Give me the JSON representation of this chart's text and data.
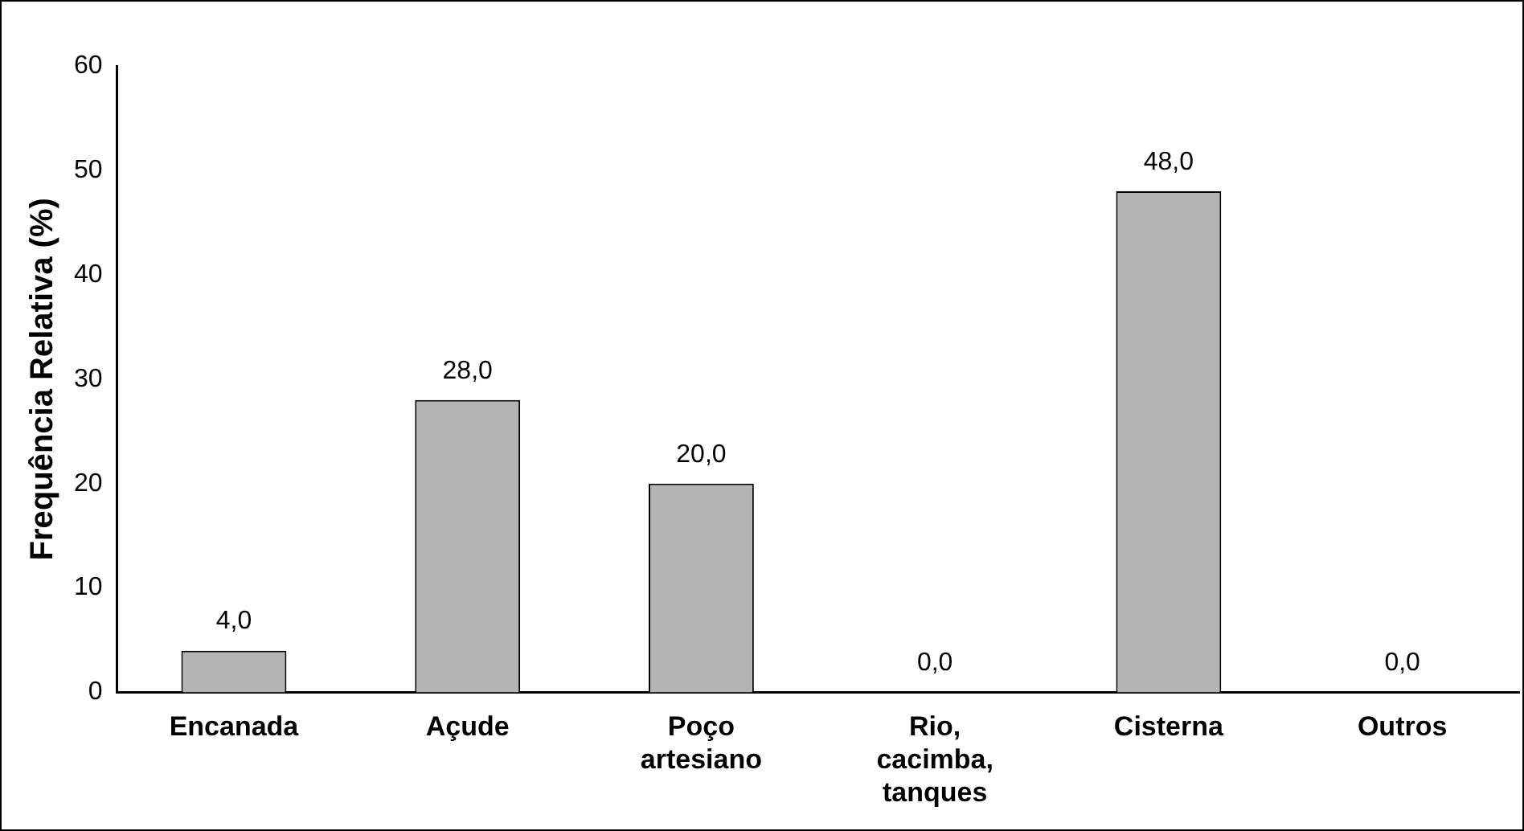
{
  "chart_data": {
    "type": "bar",
    "ylabel": "Frequência Relativa (%)",
    "categories": [
      "Encanada",
      "Açude",
      "Poço artesiano",
      "Rio, cacimba, tanques",
      "Cisterna",
      "Outros"
    ],
    "values": [
      4.0,
      28.0,
      20.0,
      0.0,
      48.0,
      0.0
    ],
    "value_labels": [
      "4,0",
      "28,0",
      "20,0",
      "0,0",
      "48,0",
      "0,0"
    ],
    "color": "#b4b4b4",
    "ylim": [
      0,
      60
    ],
    "yticks": [
      0,
      10,
      20,
      30,
      40,
      50,
      60
    ],
    "grid": false,
    "legend": false
  }
}
